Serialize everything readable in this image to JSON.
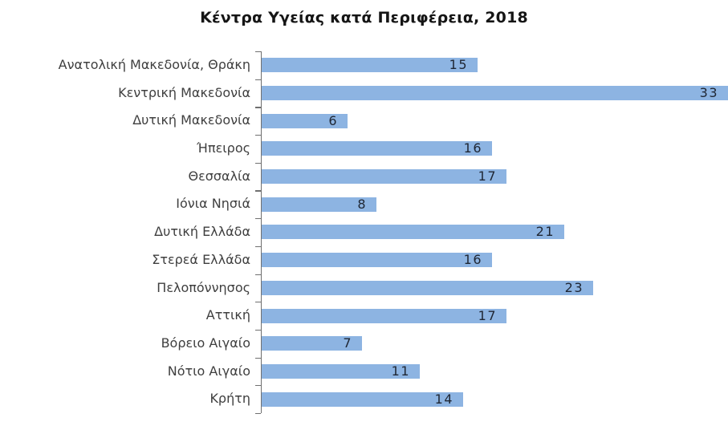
{
  "chart_data": {
    "type": "bar",
    "orientation": "horizontal",
    "title": "Κέντρα Υγείας κατά Περιφέρεια, 2018",
    "categories": [
      "Ανατολική Μακεδονία, Θράκη",
      "Κεντρική Μακεδονία",
      "Δυτική Μακεδονία",
      "Ήπειρος",
      "Θεσσαλία",
      "Ιόνια Νησιά",
      "Δυτική Ελλάδα",
      "Στερεά Ελλάδα",
      "Πελοπόννησος",
      "Αττική",
      "Βόρειο Αιγαίο",
      "Νότιο Αιγαίο",
      "Κρήτη"
    ],
    "values": [
      15,
      33,
      6,
      16,
      17,
      8,
      21,
      16,
      23,
      17,
      7,
      11,
      14
    ],
    "xlabel": "",
    "ylabel": "",
    "xlim_visible": [
      0,
      32.3
    ],
    "grid": false,
    "legend": false,
    "value_label_position": "inside-end",
    "colors": {
      "bar_fill": "#8DB4E2",
      "axis_line": "#707070",
      "value_label": "#1F2633",
      "category_label": "#3F3F3F",
      "title": "#151515",
      "background": "#FFFFFF"
    }
  }
}
